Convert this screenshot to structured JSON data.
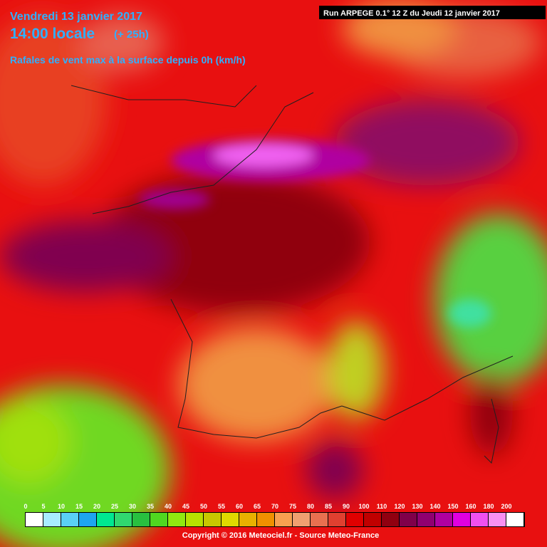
{
  "header": {
    "date": "Vendredi 13 janvier 2017",
    "time": "14:00 locale",
    "lead": "(+ 25h)",
    "parameter": "Rafales de vent max à la surface depuis 0h (km/h)",
    "run": "Run ARPEGE 0.1° 12 Z du Jeudi 12 janvier 2017"
  },
  "legend": {
    "values": [
      0,
      5,
      10,
      15,
      20,
      25,
      30,
      35,
      40,
      45,
      50,
      55,
      60,
      65,
      70,
      75,
      80,
      85,
      90,
      100,
      110,
      120,
      130,
      140,
      150,
      160,
      180,
      200
    ],
    "colors": [
      "#ffffff",
      "#a8ecff",
      "#5ad0f5",
      "#1ea5f0",
      "#00e890",
      "#30d870",
      "#28c040",
      "#50d820",
      "#90e810",
      "#b8e000",
      "#c8c800",
      "#e0d800",
      "#e8b000",
      "#f09000",
      "#f8a050",
      "#f0a070",
      "#e87050",
      "#e04030",
      "#e00000",
      "#c00000",
      "#900010",
      "#80004a",
      "#900070",
      "#b000a0",
      "#e000e0",
      "#f050f0",
      "#f890f0",
      "#ffffff"
    ]
  },
  "footer": {
    "copyright": "Copyright © 2016 Meteociel.fr - Source Meteo-France"
  }
}
